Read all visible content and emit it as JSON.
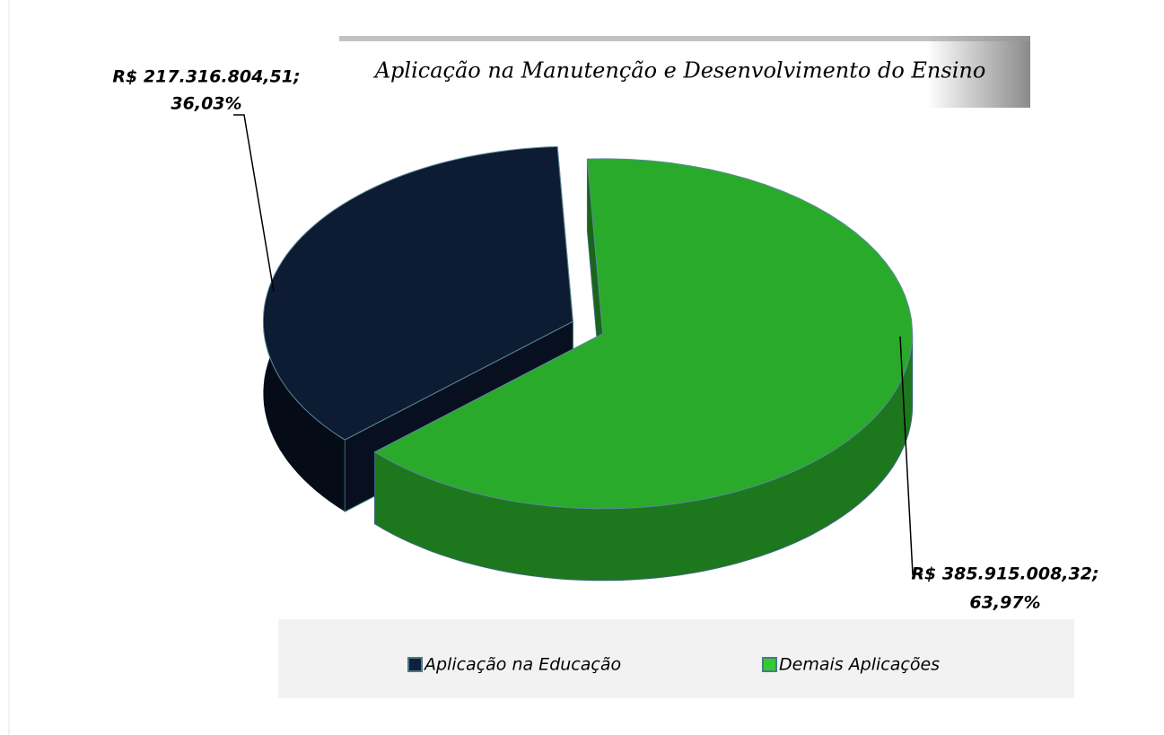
{
  "chart_data": {
    "type": "pie",
    "title": "Aplicação na Manutenção e Desenvolvimento do Ensino",
    "categories": [
      "Aplicação na Educação",
      "Demais Aplicações"
    ],
    "values": [
      36.03,
      63.97
    ],
    "value_labels": [
      "36,03%",
      "63,97%"
    ],
    "amounts": [
      217316804.51,
      385915008.32
    ],
    "amount_labels": [
      "R$ 217.316.804,51;",
      "R$ 385.915.008,32;"
    ],
    "colors": [
      "#0d1b33",
      "#2aaa2a"
    ],
    "legend": "bottom"
  }
}
